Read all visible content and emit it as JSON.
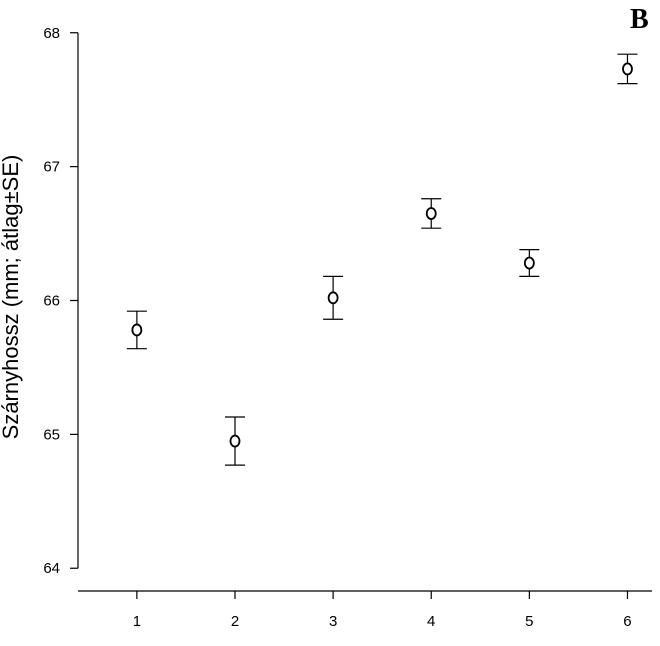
{
  "chart_data": {
    "type": "scatter",
    "panel_label": "B",
    "ylabel": "Szárnyhossz (mm; átlag±SE)",
    "xlabel": "",
    "x_ticks": [
      "1",
      "2",
      "3",
      "4",
      "5",
      "6"
    ],
    "y_ticks": [
      "64",
      "65",
      "66",
      "67",
      "68"
    ],
    "ylim": [
      63.83,
      68.17
    ],
    "x": [
      1,
      2,
      3,
      4,
      5,
      6
    ],
    "mean": [
      65.78,
      64.95,
      66.02,
      66.65,
      66.28,
      67.73
    ],
    "se": [
      0.14,
      0.18,
      0.16,
      0.11,
      0.1,
      0.11
    ],
    "grid": false,
    "legend": "none"
  }
}
